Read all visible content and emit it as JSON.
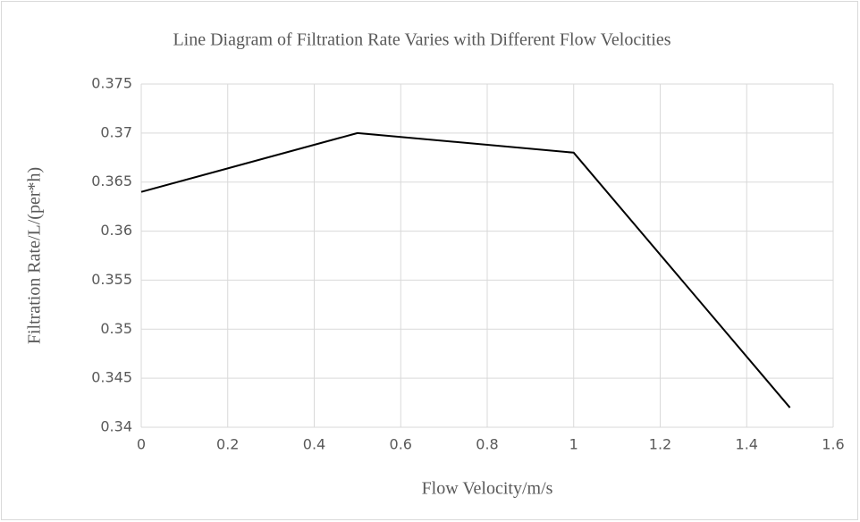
{
  "chart_data": {
    "type": "line",
    "title": "Line Diagram of Filtration Rate Varies with Different Flow Velocities",
    "x_label": "Flow Velocity/m/s",
    "y_label": "Filtration Rate/L/(per*h)",
    "x": [
      0,
      0.5,
      1,
      1.5
    ],
    "values": [
      0.364,
      0.37,
      0.368,
      0.342
    ],
    "color": "#000000",
    "xlim": [
      0,
      1.6
    ],
    "xticks": [
      0,
      0.2,
      0.4,
      0.6,
      0.8,
      1,
      1.2,
      1.4,
      1.6
    ],
    "ylim": [
      0.34,
      0.375
    ],
    "yticks": [
      0.34,
      0.345,
      0.35,
      0.355,
      0.36,
      0.365,
      0.37,
      0.375
    ],
    "grid": true
  }
}
